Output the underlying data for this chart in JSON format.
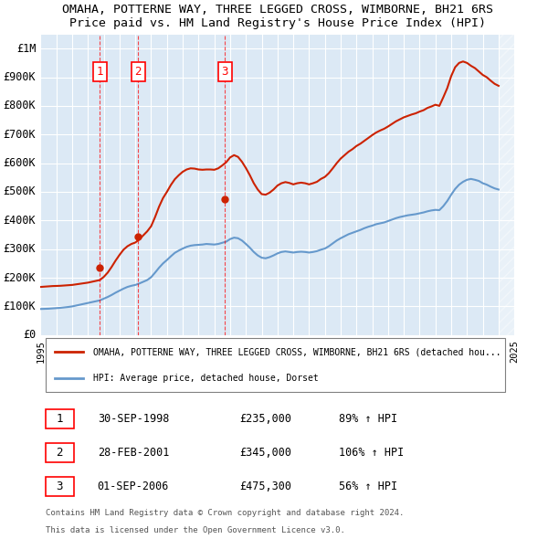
{
  "title": "OMAHA, POTTERNE WAY, THREE LEGGED CROSS, WIMBORNE, BH21 6RS",
  "subtitle": "Price paid vs. HM Land Registry's House Price Index (HPI)",
  "ylabel": "",
  "ylim": [
    0,
    1050000
  ],
  "yticks": [
    0,
    100000,
    200000,
    300000,
    400000,
    500000,
    600000,
    700000,
    800000,
    900000,
    1000000
  ],
  "ytick_labels": [
    "£0",
    "£100K",
    "£200K",
    "£300K",
    "£400K",
    "£500K",
    "£600K",
    "£700K",
    "£800K",
    "£900K",
    "£1M"
  ],
  "bg_color": "#dce9f5",
  "plot_bg": "#dce9f5",
  "grid_color": "white",
  "hpi_color": "#6699cc",
  "price_color": "#cc2200",
  "legend_line1": "OMAHA, POTTERNE WAY, THREE LEGGED CROSS, WIMBORNE, BH21 6RS (detached hou...",
  "legend_line2": "HPI: Average price, detached house, Dorset",
  "purchases": [
    {
      "num": 1,
      "date": "30-SEP-1998",
      "year": 1998.75,
      "price": 235000,
      "hpi_pct": "89% ↑ HPI"
    },
    {
      "num": 2,
      "date": "28-FEB-2001",
      "year": 2001.17,
      "price": 345000,
      "hpi_pct": "106% ↑ HPI"
    },
    {
      "num": 3,
      "date": "01-SEP-2006",
      "year": 2006.67,
      "price": 475300,
      "hpi_pct": "56% ↑ HPI"
    }
  ],
  "footer1": "Contains HM Land Registry data © Crown copyright and database right 2024.",
  "footer2": "This data is licensed under the Open Government Licence v3.0.",
  "hpi_data_x": [
    1995.0,
    1995.25,
    1995.5,
    1995.75,
    1996.0,
    1996.25,
    1996.5,
    1996.75,
    1997.0,
    1997.25,
    1997.5,
    1997.75,
    1998.0,
    1998.25,
    1998.5,
    1998.75,
    1999.0,
    1999.25,
    1999.5,
    1999.75,
    2000.0,
    2000.25,
    2000.5,
    2000.75,
    2001.0,
    2001.25,
    2001.5,
    2001.75,
    2002.0,
    2002.25,
    2002.5,
    2002.75,
    2003.0,
    2003.25,
    2003.5,
    2003.75,
    2004.0,
    2004.25,
    2004.5,
    2004.75,
    2005.0,
    2005.25,
    2005.5,
    2005.75,
    2006.0,
    2006.25,
    2006.5,
    2006.75,
    2007.0,
    2007.25,
    2007.5,
    2007.75,
    2008.0,
    2008.25,
    2008.5,
    2008.75,
    2009.0,
    2009.25,
    2009.5,
    2009.75,
    2010.0,
    2010.25,
    2010.5,
    2010.75,
    2011.0,
    2011.25,
    2011.5,
    2011.75,
    2012.0,
    2012.25,
    2012.5,
    2012.75,
    2013.0,
    2013.25,
    2013.5,
    2013.75,
    2014.0,
    2014.25,
    2014.5,
    2014.75,
    2015.0,
    2015.25,
    2015.5,
    2015.75,
    2016.0,
    2016.25,
    2016.5,
    2016.75,
    2017.0,
    2017.25,
    2017.5,
    2017.75,
    2018.0,
    2018.25,
    2018.5,
    2018.75,
    2019.0,
    2019.25,
    2019.5,
    2019.75,
    2020.0,
    2020.25,
    2020.5,
    2020.75,
    2021.0,
    2021.25,
    2021.5,
    2021.75,
    2022.0,
    2022.25,
    2022.5,
    2022.75,
    2023.0,
    2023.25,
    2023.5,
    2023.75,
    2024.0
  ],
  "hpi_data_y": [
    91000,
    91500,
    92000,
    93000,
    94000,
    95000,
    96500,
    98000,
    100000,
    103000,
    106000,
    109000,
    112000,
    115000,
    118000,
    121000,
    127000,
    133000,
    140000,
    148000,
    155000,
    162000,
    168000,
    172000,
    175000,
    180000,
    186000,
    192000,
    202000,
    218000,
    235000,
    250000,
    262000,
    275000,
    287000,
    295000,
    302000,
    308000,
    312000,
    314000,
    315000,
    316000,
    318000,
    317000,
    316000,
    318000,
    322000,
    326000,
    335000,
    340000,
    338000,
    330000,
    318000,
    305000,
    290000,
    278000,
    270000,
    268000,
    272000,
    278000,
    285000,
    290000,
    292000,
    290000,
    288000,
    290000,
    291000,
    290000,
    288000,
    290000,
    293000,
    298000,
    302000,
    310000,
    320000,
    330000,
    338000,
    345000,
    352000,
    357000,
    362000,
    367000,
    373000,
    378000,
    382000,
    387000,
    390000,
    393000,
    398000,
    403000,
    408000,
    412000,
    415000,
    418000,
    420000,
    422000,
    425000,
    428000,
    432000,
    435000,
    437000,
    436000,
    450000,
    468000,
    490000,
    510000,
    525000,
    535000,
    542000,
    545000,
    542000,
    538000,
    530000,
    525000,
    518000,
    512000,
    508000
  ],
  "price_data_x": [
    1995.0,
    1995.25,
    1995.5,
    1995.75,
    1996.0,
    1996.25,
    1996.5,
    1996.75,
    1997.0,
    1997.25,
    1997.5,
    1997.75,
    1998.0,
    1998.25,
    1998.5,
    1998.75,
    1999.0,
    1999.25,
    1999.5,
    1999.75,
    2000.0,
    2000.25,
    2000.5,
    2000.75,
    2001.0,
    2001.25,
    2001.5,
    2001.75,
    2002.0,
    2002.25,
    2002.5,
    2002.75,
    2003.0,
    2003.25,
    2003.5,
    2003.75,
    2004.0,
    2004.25,
    2004.5,
    2004.75,
    2005.0,
    2005.25,
    2005.5,
    2005.75,
    2006.0,
    2006.25,
    2006.5,
    2006.75,
    2007.0,
    2007.25,
    2007.5,
    2007.75,
    2008.0,
    2008.25,
    2008.5,
    2008.75,
    2009.0,
    2009.25,
    2009.5,
    2009.75,
    2010.0,
    2010.25,
    2010.5,
    2010.75,
    2011.0,
    2011.25,
    2011.5,
    2011.75,
    2012.0,
    2012.25,
    2012.5,
    2012.75,
    2013.0,
    2013.25,
    2013.5,
    2013.75,
    2014.0,
    2014.25,
    2014.5,
    2014.75,
    2015.0,
    2015.25,
    2015.5,
    2015.75,
    2016.0,
    2016.25,
    2016.5,
    2016.75,
    2017.0,
    2017.25,
    2017.5,
    2017.75,
    2018.0,
    2018.25,
    2018.5,
    2018.75,
    2019.0,
    2019.25,
    2019.5,
    2019.75,
    2020.0,
    2020.25,
    2020.5,
    2020.75,
    2021.0,
    2021.25,
    2021.5,
    2021.75,
    2022.0,
    2022.25,
    2022.5,
    2022.75,
    2023.0,
    2023.25,
    2023.5,
    2023.75,
    2024.0
  ],
  "price_data_y": [
    168000,
    169000,
    170000,
    171000,
    171500,
    172000,
    173000,
    174000,
    175000,
    177000,
    179000,
    181000,
    183000,
    186000,
    189000,
    192000,
    203000,
    218000,
    238000,
    260000,
    280000,
    298000,
    310000,
    318000,
    323000,
    334000,
    348000,
    362000,
    380000,
    412000,
    448000,
    478000,
    500000,
    524000,
    544000,
    558000,
    570000,
    578000,
    582000,
    581000,
    578000,
    577000,
    578000,
    578000,
    577000,
    582000,
    592000,
    603000,
    620000,
    628000,
    622000,
    605000,
    583000,
    558000,
    530000,
    508000,
    492000,
    490000,
    497000,
    508000,
    522000,
    530000,
    534000,
    531000,
    526000,
    530000,
    532000,
    530000,
    526000,
    530000,
    535000,
    545000,
    552000,
    565000,
    582000,
    600000,
    616000,
    628000,
    640000,
    649000,
    660000,
    668000,
    678000,
    688000,
    698000,
    707000,
    714000,
    720000,
    728000,
    737000,
    746000,
    753000,
    760000,
    765000,
    770000,
    774000,
    780000,
    785000,
    793000,
    798000,
    804000,
    800000,
    830000,
    862000,
    904000,
    935000,
    950000,
    955000,
    950000,
    940000,
    932000,
    920000,
    908000,
    900000,
    888000,
    877000,
    870000
  ],
  "xtick_years": [
    1995,
    1996,
    1997,
    1998,
    1999,
    2000,
    2001,
    2002,
    2003,
    2004,
    2005,
    2006,
    2007,
    2008,
    2009,
    2010,
    2011,
    2012,
    2013,
    2014,
    2015,
    2016,
    2017,
    2018,
    2019,
    2020,
    2021,
    2022,
    2023,
    2024,
    2025
  ]
}
